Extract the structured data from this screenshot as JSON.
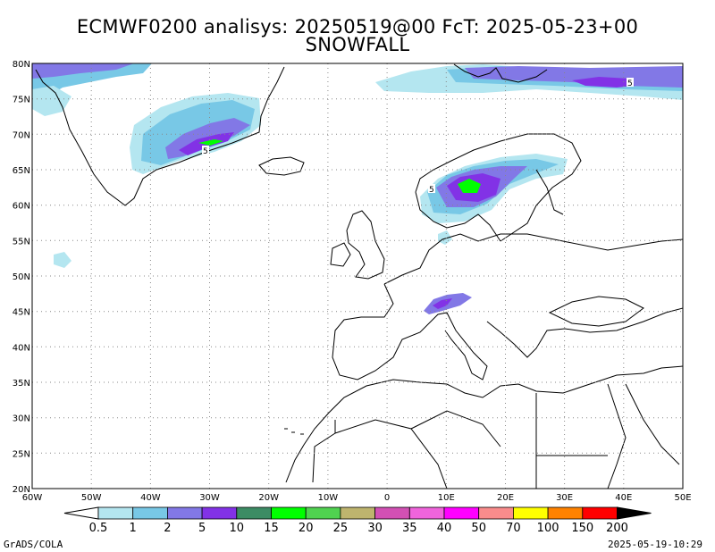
{
  "header": {
    "line1": "ECMWF0200 analisys: 20250519@00 FcT: 2025-05-23+00",
    "line2": "SNOWFALL"
  },
  "map": {
    "projection": "lat-lon",
    "lon_range": [
      -60,
      50
    ],
    "lat_range": [
      20,
      80
    ],
    "grid": "dotted",
    "lat_labels": [
      "80N",
      "75N",
      "70N",
      "65N",
      "60N",
      "55N",
      "50N",
      "45N",
      "40N",
      "35N",
      "30N",
      "25N",
      "20N"
    ],
    "lon_labels": [
      "60W",
      "50W",
      "40W",
      "30W",
      "20W",
      "10W",
      "0",
      "10E",
      "20E",
      "30E",
      "40E",
      "50E"
    ],
    "contour_labels": [
      "5",
      "5",
      "5"
    ],
    "colors": {
      "c0.5": "#b4e6f0",
      "c1": "#78c8e6",
      "c2": "#8278e6",
      "c5": "#8232e6",
      "c10": "#3c8c64",
      "c15": "#00ff00",
      "c20": "#50d250",
      "c25": "#beb46e",
      "c30": "#d250b4",
      "c35": "#f064dc",
      "c40": "#ff00ff",
      "c50": "#fa8c8c",
      "c70": "#ffff00",
      "c100": "#ff8200",
      "c150": "#ff0000",
      "c200": "#8c0000"
    }
  },
  "colorbar": {
    "labels": [
      "0.5",
      "1",
      "2",
      "5",
      "10",
      "15",
      "20",
      "25",
      "30",
      "35",
      "40",
      "50",
      "70",
      "100",
      "150",
      "200"
    ],
    "colors": [
      "#b4e6f0",
      "#78c8e6",
      "#8278e6",
      "#8232e6",
      "#3c8c64",
      "#00ff00",
      "#50d250",
      "#beb46e",
      "#d250b4",
      "#f064dc",
      "#ff00ff",
      "#fa8c8c",
      "#ffff00",
      "#ff8200",
      "#ff0000",
      "#8c0000"
    ]
  },
  "footer": {
    "left": "GrADS/COLA",
    "right": "2025-05-19-10:29"
  }
}
